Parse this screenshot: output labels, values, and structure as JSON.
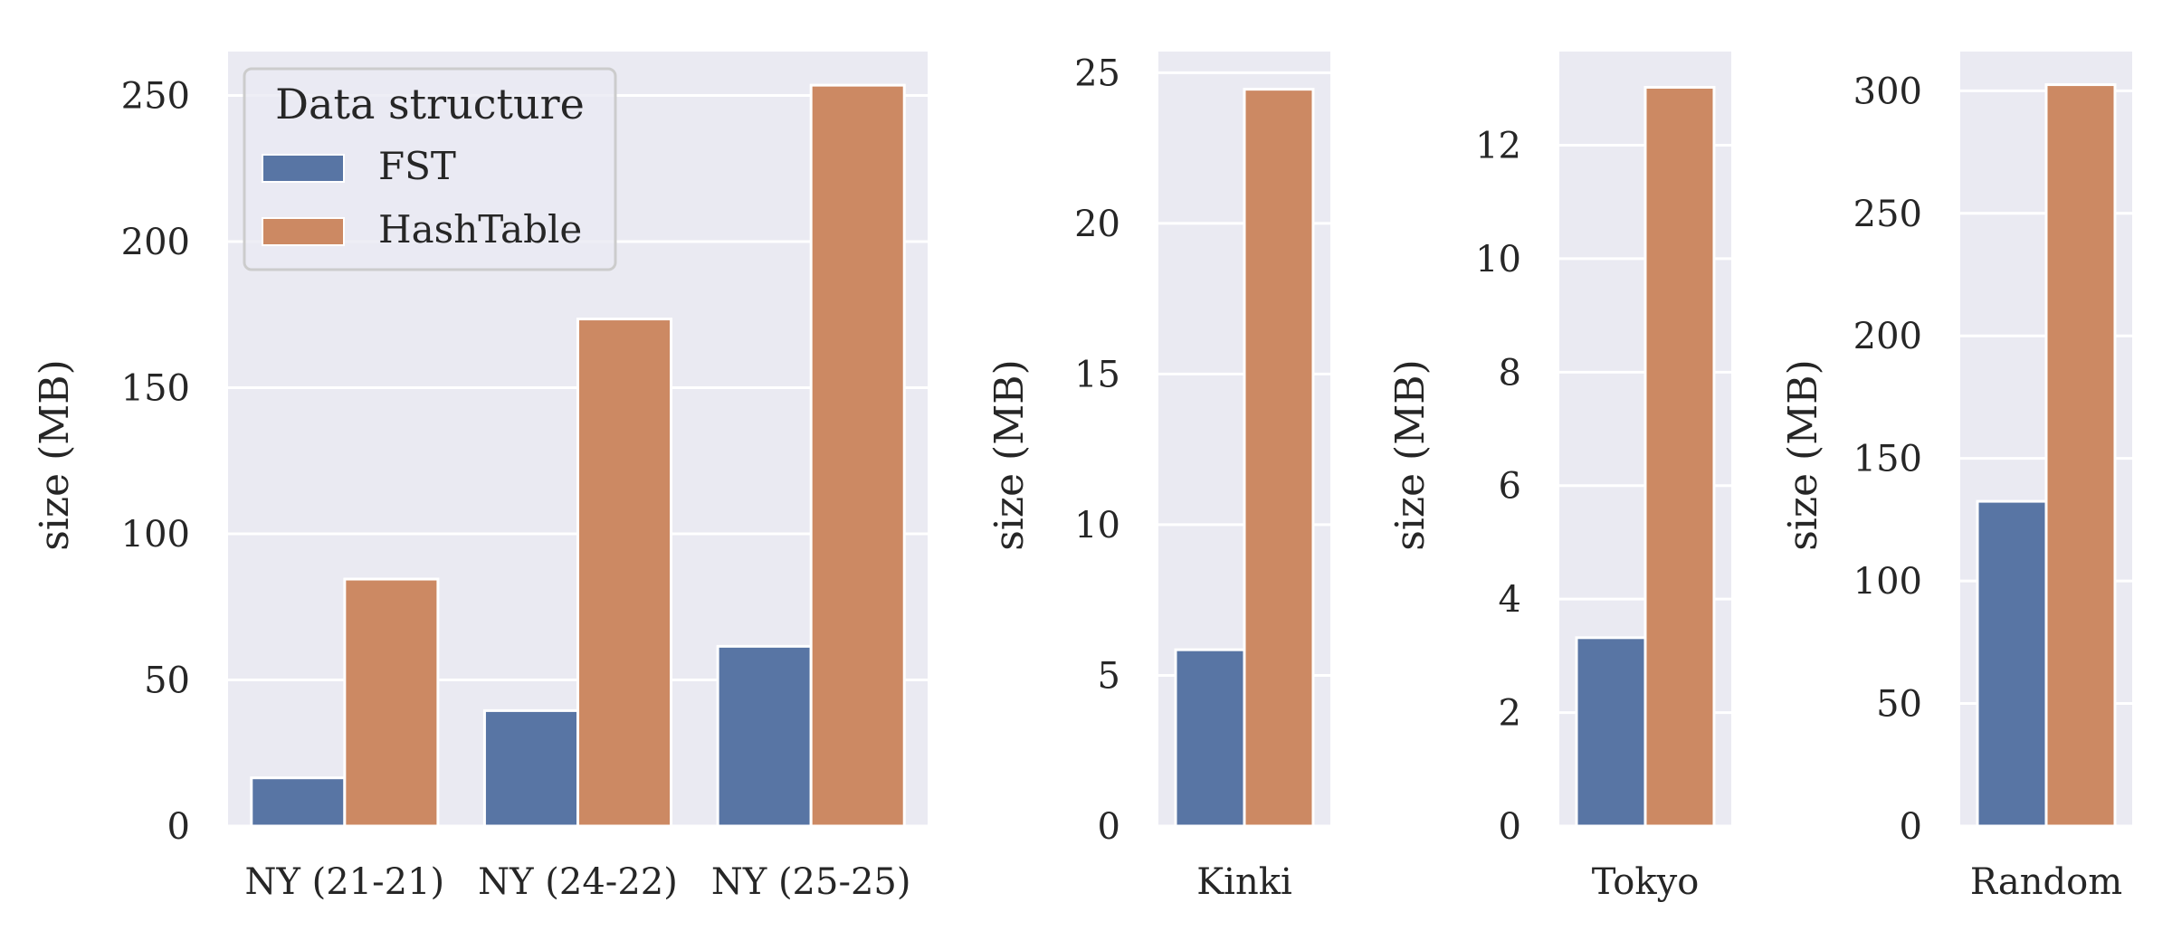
{
  "chart_data": [
    {
      "type": "bar",
      "categories": [
        "NY (21-21)",
        "NY (24-22)",
        "NY (25-25)"
      ],
      "series": [
        {
          "name": "FST",
          "values": [
            16.5,
            39.5,
            61.5
          ]
        },
        {
          "name": "HashTable",
          "values": [
            84.5,
            173.5,
            253.5
          ]
        }
      ],
      "ylabel": "size (MB)",
      "ylim": [
        0,
        265
      ],
      "yticks": [
        0,
        50,
        100,
        150,
        200,
        250
      ],
      "grid": true,
      "legend": {
        "title": "Data structure",
        "placement": "top-left"
      }
    },
    {
      "type": "bar",
      "categories": [
        "Kinki"
      ],
      "series": [
        {
          "name": "FST",
          "values": [
            5.85
          ]
        },
        {
          "name": "HashTable",
          "values": [
            24.45
          ]
        }
      ],
      "ylabel": "size (MB)",
      "ylim": [
        0,
        25.7
      ],
      "yticks": [
        0,
        5,
        10,
        15,
        20,
        25
      ],
      "grid": true
    },
    {
      "type": "bar",
      "categories": [
        "Tokyo"
      ],
      "series": [
        {
          "name": "FST",
          "values": [
            3.32
          ]
        },
        {
          "name": "HashTable",
          "values": [
            13.02
          ]
        }
      ],
      "ylabel": "size (MB)",
      "ylim": [
        0,
        13.65
      ],
      "yticks": [
        0,
        2,
        4,
        6,
        8,
        10,
        12
      ],
      "grid": true
    },
    {
      "type": "bar",
      "categories": [
        "Random"
      ],
      "series": [
        {
          "name": "FST",
          "values": [
            132.5
          ]
        },
        {
          "name": "HashTable",
          "values": [
            302.5
          ]
        }
      ],
      "ylabel": "size (MB)",
      "ylim": [
        0,
        316
      ],
      "yticks": [
        0,
        50,
        100,
        150,
        200,
        250,
        300
      ],
      "grid": true
    }
  ],
  "colors": {
    "FST": "#5875a4",
    "HashTable": "#cc8963",
    "axes_bg": "#eaeaf2",
    "grid": "#ffffff"
  }
}
